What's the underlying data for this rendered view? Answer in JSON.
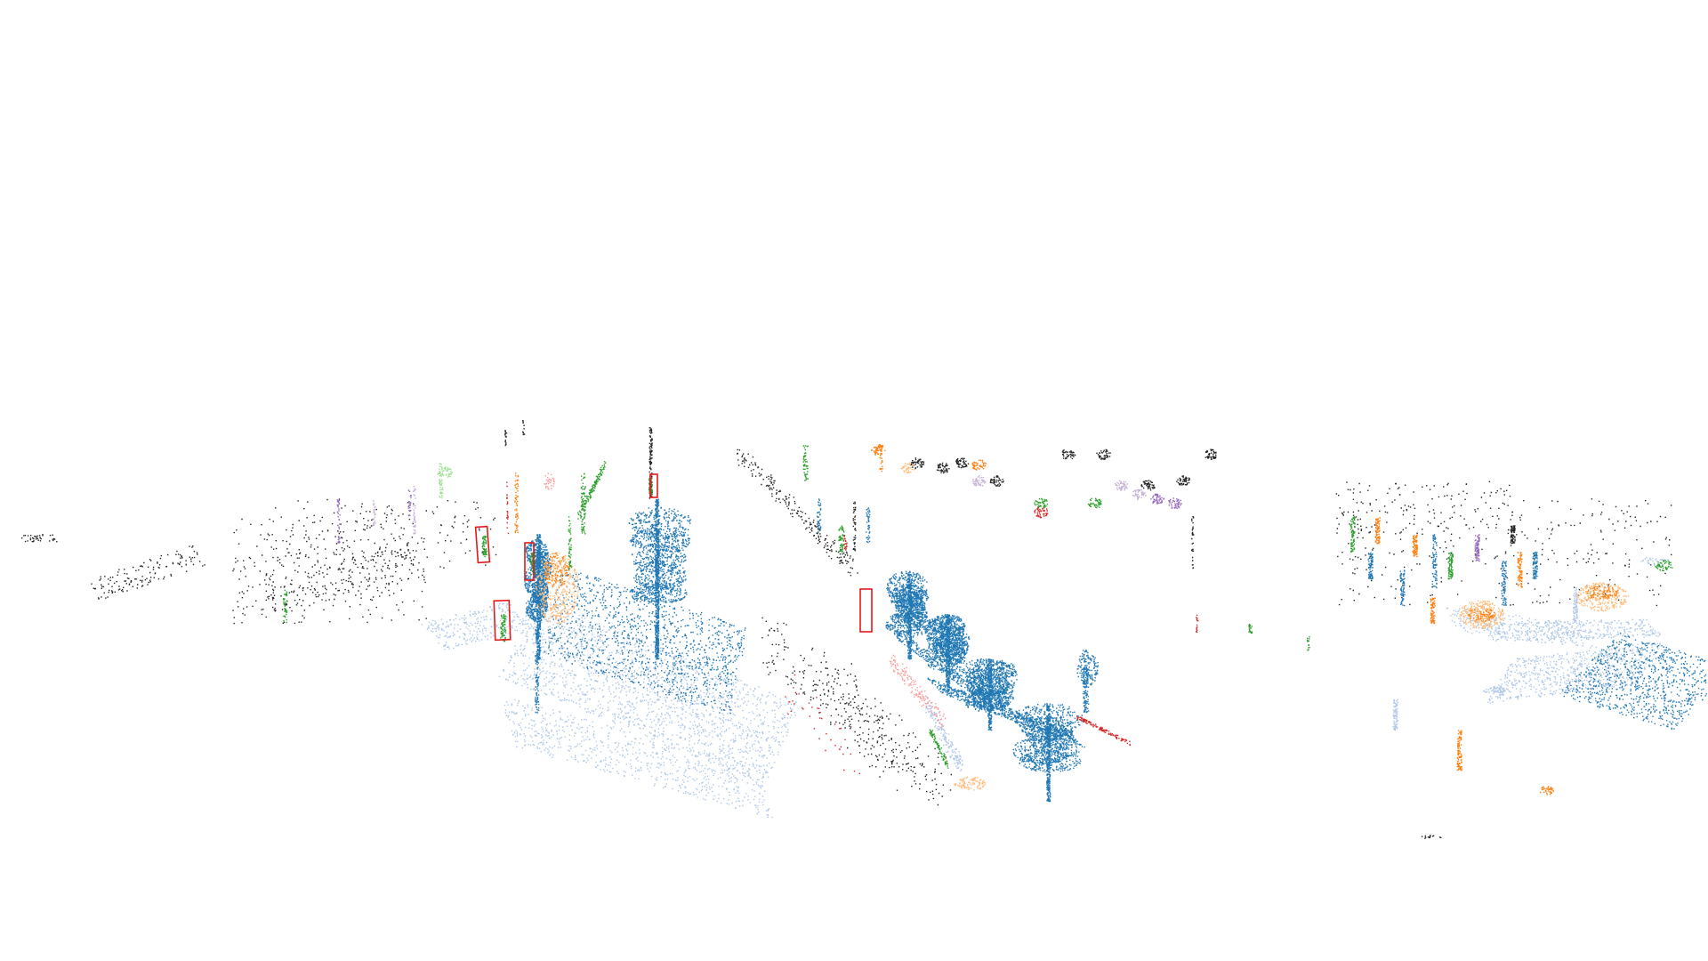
{
  "scene": {
    "background_color": "#ffffff",
    "panels": [
      {
        "id": "left-panel",
        "highlighted_objects": 4
      },
      {
        "id": "middle-panel",
        "highlighted_objects": 1
      },
      {
        "id": "right-panel",
        "highlighted_objects": 0
      }
    ]
  },
  "palette": {
    "tree": "#1f77b4",
    "ground": "#aec7e8",
    "car": "#ff7f0e",
    "car_light": "#ffbb78",
    "vegetation": "#2ca02c",
    "vegetation_light": "#98df8a",
    "pole": "#9467bd",
    "pole_light": "#c5b0d5",
    "red_obj": "#d62728",
    "pink_obj": "#ff9896",
    "unlabeled": "#222222",
    "highlight_box": "#e31a1c"
  }
}
